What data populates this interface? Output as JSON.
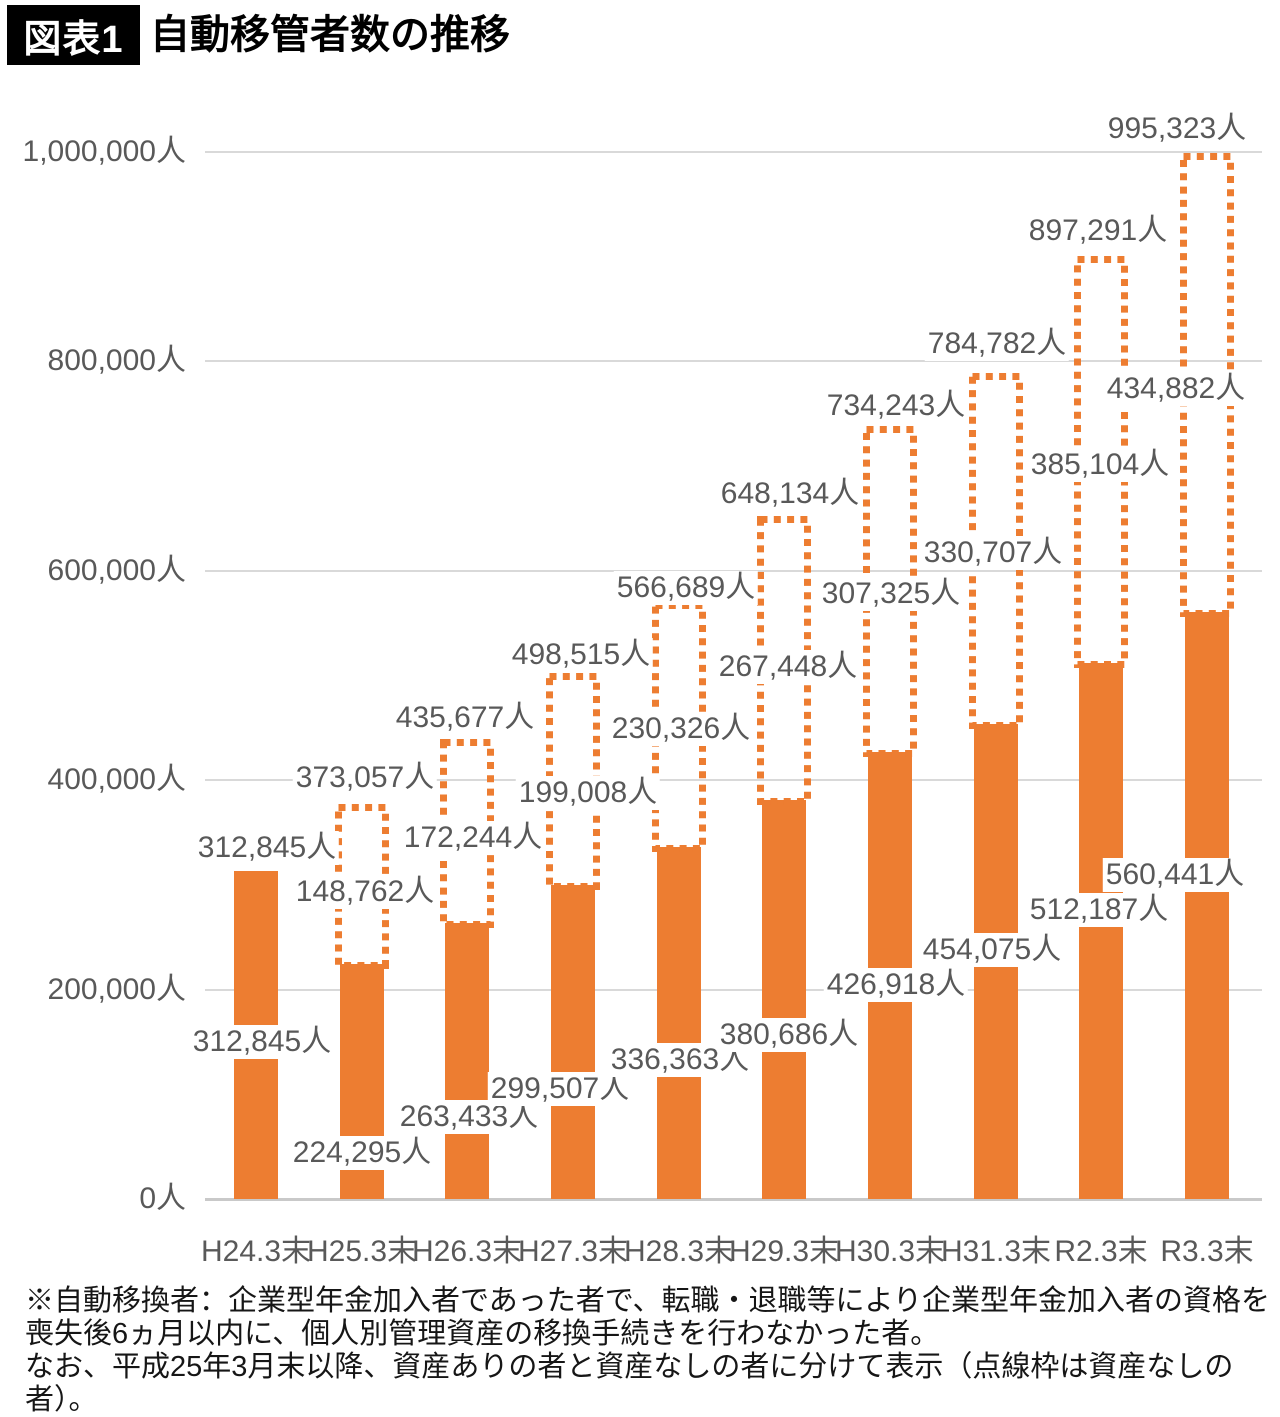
{
  "header": {
    "badge": "図表1",
    "title": "自動移管者数の推移"
  },
  "chart_data": {
    "type": "bar",
    "stacked": true,
    "unit": "人",
    "title": "自動移管者数の推移",
    "categories": [
      "H24.3末",
      "H25.3末",
      "H26.3末",
      "H27.3末",
      "H28.3末",
      "H29.3末",
      "H30.3末",
      "H31.3末",
      "R2.3末",
      "R3.3末"
    ],
    "series": [
      {
        "name": "資産ありの者（実線の棒）",
        "style": "solid",
        "values": [
          312845,
          224295,
          263433,
          299507,
          336363,
          380686,
          426918,
          454075,
          512187,
          560441
        ]
      },
      {
        "name": "資産なしの者（点線枠）",
        "style": "dotted-outline",
        "values": [
          null,
          148762,
          172244,
          199008,
          230326,
          267448,
          307325,
          330707,
          385104,
          434882
        ]
      }
    ],
    "totals": [
      312845,
      373057,
      435677,
      498515,
      566689,
      648134,
      734243,
      784782,
      897291,
      995323
    ],
    "value_labels": {
      "totals": [
        "312,845人",
        "373,057人",
        "435,677人",
        "498,515人",
        "566,689人",
        "648,134人",
        "734,243人",
        "784,782人",
        "897,291人",
        "995,323人"
      ],
      "with_assets": [
        "312,845人",
        "224,295人",
        "263,433人",
        "299,507人",
        "336,363人",
        "380,686人",
        "426,918人",
        "454,075人",
        "512,187人",
        "560,441人"
      ],
      "without_assets": [
        null,
        "148,762人",
        "172,244人",
        "199,008人",
        "230,326人",
        "267,448人",
        "307,325人",
        "330,707人",
        "385,104人",
        "434,882人"
      ]
    },
    "yticks": [
      {
        "value": 0,
        "label": "0人"
      },
      {
        "value": 200000,
        "label": "200,000人"
      },
      {
        "value": 400000,
        "label": "400,000人"
      },
      {
        "value": 600000,
        "label": "600,000人"
      },
      {
        "value": 800000,
        "label": "800,000人"
      },
      {
        "value": 1000000,
        "label": "1,000,000人"
      }
    ],
    "ylim": [
      0,
      1000000
    ],
    "grid": "horizontal",
    "legend": "none",
    "colors": {
      "bar": "#ED7D31",
      "dotted_border": "#ED7D31",
      "label_text": "#595959",
      "gridline": "#d9d9d9"
    }
  },
  "footnote": {
    "lines": [
      "※自動移換者：企業型年金加入者であった者で、転職・退職等により企業型年金加入者の資格を",
      "喪失後6ヵ月以内に、個人別管理資産の移換手続きを行わなかった者。",
      "なお、平成25年3月末以降、資産ありの者と資産なしの者に分けて表示（点線枠は資産なしの者）。"
    ]
  }
}
